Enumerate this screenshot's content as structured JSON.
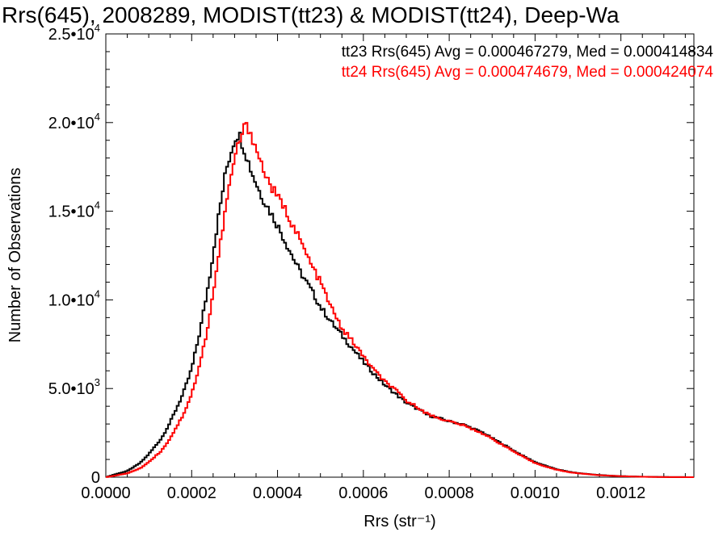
{
  "chart_data": {
    "type": "line",
    "title": "Rrs(645), 2008289, MODIST(tt23) & MODIST(tt24), Deep-Wa",
    "xlabel": "Rrs (str⁻¹)",
    "ylabel": "Number of Observations",
    "xlim": [
      0.0,
      0.00137
    ],
    "ylim": [
      0,
      25000
    ],
    "x_ticks": [
      {
        "value": 0.0,
        "label": "0.0000"
      },
      {
        "value": 0.0002,
        "label": "0.0002"
      },
      {
        "value": 0.0004,
        "label": "0.0004"
      },
      {
        "value": 0.0006,
        "label": "0.0006"
      },
      {
        "value": 0.0008,
        "label": "0.0008"
      },
      {
        "value": 0.001,
        "label": "0.0010"
      },
      {
        "value": 0.0012,
        "label": "0.0012"
      }
    ],
    "y_ticks": [
      {
        "value": 0,
        "mantissa": "0",
        "exponent": ""
      },
      {
        "value": 5000,
        "mantissa": "5.0•10",
        "exponent": "3"
      },
      {
        "value": 10000,
        "mantissa": "1.0•10",
        "exponent": "4"
      },
      {
        "value": 15000,
        "mantissa": "1.5•10",
        "exponent": "4"
      },
      {
        "value": 20000,
        "mantissa": "2.0•10",
        "exponent": "4"
      },
      {
        "value": 25000,
        "mantissa": "2.5•10",
        "exponent": "4"
      }
    ],
    "grid": false,
    "legend_position": "top-right",
    "series": [
      {
        "name": "tt23",
        "legend_text": "tt23 Rrs(645) Avg = 0.000467279, Med = 0.000414834",
        "color": "#000000",
        "points": [
          [
            0.0,
            0
          ],
          [
            2e-05,
            150
          ],
          [
            5e-05,
            350
          ],
          [
            8e-05,
            800
          ],
          [
            0.0001,
            1300
          ],
          [
            0.00013,
            2200
          ],
          [
            0.00015,
            3100
          ],
          [
            0.00018,
            4700
          ],
          [
            0.0002,
            6100
          ],
          [
            0.00022,
            8300
          ],
          [
            0.00024,
            11000
          ],
          [
            0.00026,
            14300
          ],
          [
            0.00028,
            17300
          ],
          [
            0.0003,
            19100
          ],
          [
            0.00031,
            19400
          ],
          [
            0.00032,
            18700
          ],
          [
            0.00034,
            17200
          ],
          [
            0.00036,
            16000
          ],
          [
            0.00038,
            15100
          ],
          [
            0.0004,
            14200
          ],
          [
            0.00042,
            13200
          ],
          [
            0.00045,
            11700
          ],
          [
            0.00048,
            10500
          ],
          [
            0.0005,
            9600
          ],
          [
            0.00053,
            8600
          ],
          [
            0.00055,
            8000
          ],
          [
            0.00058,
            7100
          ],
          [
            0.0006,
            6500
          ],
          [
            0.00063,
            5700
          ],
          [
            0.00065,
            5200
          ],
          [
            0.00068,
            4600
          ],
          [
            0.0007,
            4200
          ],
          [
            0.00073,
            3800
          ],
          [
            0.00075,
            3500
          ],
          [
            0.00078,
            3300
          ],
          [
            0.0008,
            3150
          ],
          [
            0.00083,
            3000
          ],
          [
            0.00085,
            2800
          ],
          [
            0.00088,
            2500
          ],
          [
            0.0009,
            2200
          ],
          [
            0.00093,
            1800
          ],
          [
            0.00095,
            1500
          ],
          [
            0.00098,
            1100
          ],
          [
            0.001,
            850
          ],
          [
            0.00103,
            600
          ],
          [
            0.00105,
            450
          ],
          [
            0.00108,
            300
          ],
          [
            0.0011,
            230
          ],
          [
            0.00115,
            120
          ],
          [
            0.0012,
            60
          ],
          [
            0.00125,
            25
          ],
          [
            0.0013,
            10
          ],
          [
            0.00137,
            0
          ]
        ]
      },
      {
        "name": "tt24",
        "legend_text": "tt24 Rrs(645) Avg = 0.000474679, Med = 0.000424074",
        "color": "#ff0000",
        "points": [
          [
            0.0,
            0
          ],
          [
            2e-05,
            80
          ],
          [
            5e-05,
            220
          ],
          [
            8e-05,
            500
          ],
          [
            0.0001,
            850
          ],
          [
            0.00013,
            1500
          ],
          [
            0.00015,
            2200
          ],
          [
            0.00018,
            3500
          ],
          [
            0.0002,
            4700
          ],
          [
            0.00022,
            6400
          ],
          [
            0.00024,
            8800
          ],
          [
            0.00026,
            12000
          ],
          [
            0.00028,
            15300
          ],
          [
            0.0003,
            18000
          ],
          [
            0.00032,
            19600
          ],
          [
            0.00033,
            19800
          ],
          [
            0.00034,
            19300
          ],
          [
            0.00036,
            17800
          ],
          [
            0.00038,
            16600
          ],
          [
            0.0004,
            15800
          ],
          [
            0.00042,
            15000
          ],
          [
            0.00045,
            13500
          ],
          [
            0.00048,
            11900
          ],
          [
            0.0005,
            11000
          ],
          [
            0.00053,
            9300
          ],
          [
            0.00055,
            8400
          ],
          [
            0.00058,
            7500
          ],
          [
            0.0006,
            6800
          ],
          [
            0.00063,
            5900
          ],
          [
            0.00065,
            5400
          ],
          [
            0.00068,
            4800
          ],
          [
            0.0007,
            4300
          ],
          [
            0.00073,
            3900
          ],
          [
            0.00075,
            3550
          ],
          [
            0.00078,
            3300
          ],
          [
            0.0008,
            3150
          ],
          [
            0.00083,
            2950
          ],
          [
            0.00085,
            2750
          ],
          [
            0.00088,
            2450
          ],
          [
            0.0009,
            2150
          ],
          [
            0.00093,
            1750
          ],
          [
            0.00095,
            1450
          ],
          [
            0.00098,
            1050
          ],
          [
            0.001,
            800
          ],
          [
            0.00103,
            560
          ],
          [
            0.00105,
            420
          ],
          [
            0.00108,
            280
          ],
          [
            0.0011,
            220
          ],
          [
            0.00115,
            110
          ],
          [
            0.0012,
            55
          ],
          [
            0.00125,
            22
          ],
          [
            0.0013,
            8
          ],
          [
            0.00137,
            0
          ]
        ]
      }
    ]
  }
}
